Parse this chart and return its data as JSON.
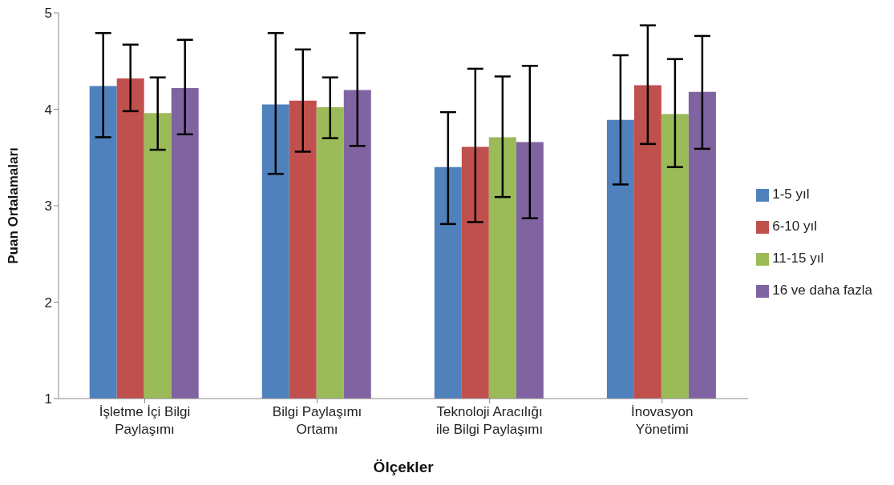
{
  "chart_data": {
    "type": "bar",
    "xlabel": "Ölçekler",
    "ylabel": "Puan Ortalamaları",
    "categories": [
      "İşletme İçi Bilgi Paylaşımı",
      "Bilgi Paylaşımı Ortamı",
      "Teknoloji Aracılığı ile Bilgi Paylaşımı",
      "İnovasyon Yönetimi"
    ],
    "series": [
      {
        "name": "1-5 yıl",
        "color": "#4f81bd",
        "values": [
          4.24,
          4.05,
          3.4,
          3.89
        ],
        "errors": [
          [
            3.71,
            4.79
          ],
          [
            3.33,
            4.79
          ],
          [
            2.81,
            3.97
          ],
          [
            3.22,
            4.56
          ]
        ]
      },
      {
        "name": "6-10 yıl",
        "color": "#c0504d",
        "values": [
          4.32,
          4.09,
          3.61,
          4.25
        ],
        "errors": [
          [
            3.98,
            4.67
          ],
          [
            3.56,
            4.62
          ],
          [
            2.83,
            4.42
          ],
          [
            3.64,
            4.87
          ]
        ]
      },
      {
        "name": "11-15 yıl",
        "color": "#9bbb59",
        "values": [
          3.96,
          4.02,
          3.71,
          3.95
        ],
        "errors": [
          [
            3.58,
            4.33
          ],
          [
            3.7,
            4.33
          ],
          [
            3.09,
            4.34
          ],
          [
            3.4,
            4.52
          ]
        ]
      },
      {
        "name": "16 ve daha fazla",
        "color": "#8064a2",
        "values": [
          4.22,
          4.2,
          3.66,
          4.18
        ],
        "errors": [
          [
            3.74,
            4.72
          ],
          [
            3.62,
            4.79
          ],
          [
            2.87,
            4.45
          ],
          [
            3.59,
            4.76
          ]
        ]
      }
    ],
    "ylim": [
      1,
      5
    ],
    "yticks": [
      1,
      2,
      3,
      4,
      5
    ],
    "grid": false,
    "legend": "right"
  }
}
